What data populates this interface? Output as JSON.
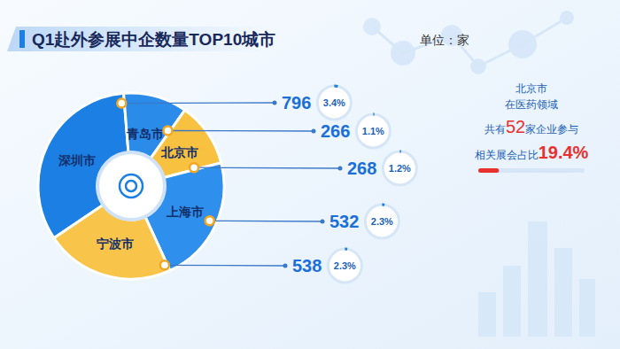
{
  "chart_data": {
    "type": "pie",
    "title": "Q1赴外参展中企数量TOP10城市",
    "unit": "单位：家",
    "categories": [
      "深圳市",
      "青岛市",
      "北京市",
      "上海市",
      "宁波市"
    ],
    "values": [
      796,
      266,
      268,
      532,
      538
    ],
    "colors": [
      "#1b7fe3",
      "#2a8be9",
      "#f8c13f",
      "#2f8fec",
      "#f9c44a"
    ],
    "percent": [
      3.4,
      1.1,
      1.2,
      2.3,
      2.3
    ],
    "percent_labels": [
      "3.4%",
      "1.1%",
      "1.2%",
      "2.3%",
      "2.3%"
    ],
    "data_labels": true,
    "annotation": {
      "line1": "北京市",
      "line2": "在医药领域",
      "count_prefix": "共有",
      "count": 52,
      "count_suffix": "家企业参与",
      "share_prefix": "相关展会占比",
      "share": 19.4,
      "share_label": "19.4%"
    }
  }
}
